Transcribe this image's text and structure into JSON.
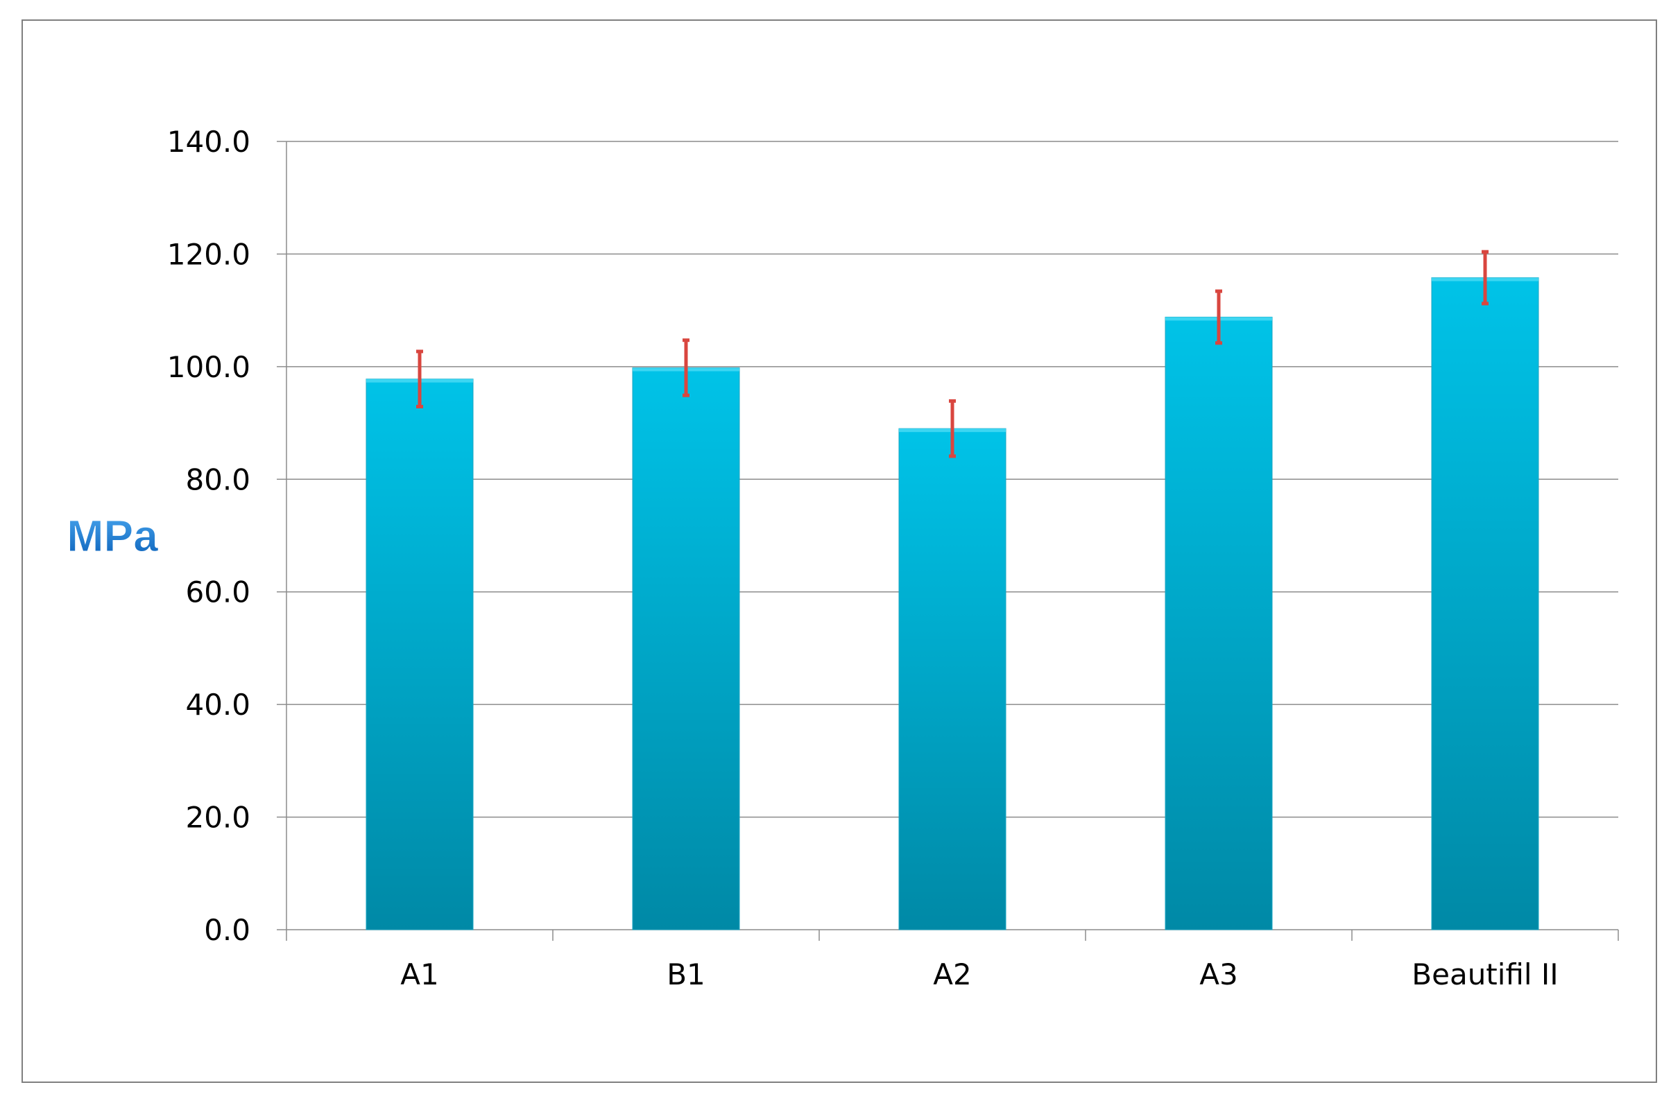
{
  "chart_data": {
    "type": "bar",
    "title": "",
    "xlabel": "",
    "ylabel": "MPa",
    "ylim": [
      0,
      140
    ],
    "yticks": [
      "0.0",
      "20.0",
      "40.0",
      "60.0",
      "80.0",
      "100.0",
      "120.0",
      "140.0"
    ],
    "categories": [
      "A1",
      "B1",
      "A2",
      "A3",
      "Beautifil II"
    ],
    "values": [
      97.8,
      99.8,
      89.0,
      108.8,
      115.8
    ],
    "error_plus": [
      4.9,
      4.9,
      4.9,
      4.6,
      4.6
    ],
    "error_minus": [
      4.9,
      4.9,
      4.9,
      4.6,
      4.6
    ],
    "grid": true,
    "legend": "none",
    "colors": {
      "bar_top": "#00c3e8",
      "bar_bottom": "#0089a6",
      "error_bar": "#d9463f",
      "grid": "#8c8c8c",
      "ylabel": "#1f78d1"
    }
  }
}
